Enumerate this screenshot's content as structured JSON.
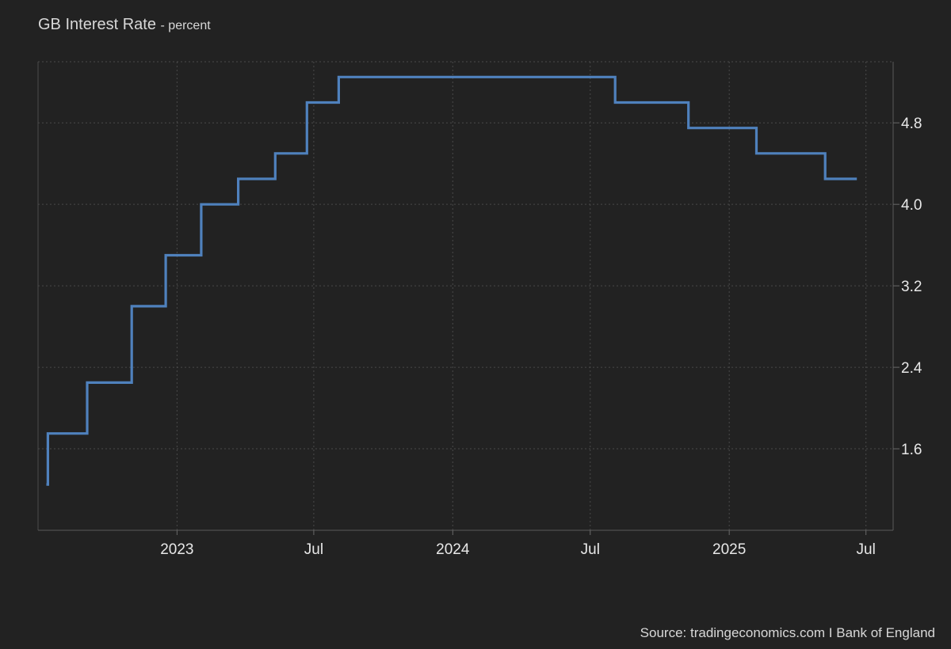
{
  "chart_data": {
    "type": "line",
    "title": "GB Interest Rate",
    "unit_label": "- percent",
    "source": "Source: tradingeconomics.com I Bank of England",
    "line_color": "#4f81bd",
    "background": "#222222",
    "grid": true,
    "step": true,
    "y_axis_side": "right",
    "ylim": [
      0.8,
      5.4
    ],
    "yticks": [
      {
        "value": 1.6,
        "label": "1.6"
      },
      {
        "value": 2.4,
        "label": "2.4"
      },
      {
        "value": 3.2,
        "label": "3.2"
      },
      {
        "value": 4.0,
        "label": "4.0"
      },
      {
        "value": 4.8,
        "label": "4.8"
      }
    ],
    "xlim": [
      "2022-07-01",
      "2025-08-06"
    ],
    "xticks": [
      {
        "date": "2023-01-01",
        "label": "2023"
      },
      {
        "date": "2023-07-01",
        "label": "Jul"
      },
      {
        "date": "2024-01-01",
        "label": "2024"
      },
      {
        "date": "2024-07-01",
        "label": "Jul"
      },
      {
        "date": "2025-01-01",
        "label": "2025"
      },
      {
        "date": "2025-07-01",
        "label": "Jul"
      }
    ],
    "series": [
      {
        "points": [
          {
            "date": "2022-07-12",
            "value": 1.25
          },
          {
            "date": "2022-07-14",
            "value": 1.75
          },
          {
            "date": "2022-09-04",
            "value": 2.25
          },
          {
            "date": "2022-11-02",
            "value": 3.0
          },
          {
            "date": "2022-12-17",
            "value": 3.5
          },
          {
            "date": "2023-02-02",
            "value": 4.0
          },
          {
            "date": "2023-03-23",
            "value": 4.25
          },
          {
            "date": "2023-05-11",
            "value": 4.5
          },
          {
            "date": "2023-06-22",
            "value": 5.0
          },
          {
            "date": "2023-08-03",
            "value": 5.25
          },
          {
            "date": "2024-08-03",
            "value": 5.0
          },
          {
            "date": "2024-11-08",
            "value": 4.75
          },
          {
            "date": "2025-02-06",
            "value": 4.5
          },
          {
            "date": "2025-05-08",
            "value": 4.25
          },
          {
            "date": "2025-06-19",
            "value": 4.25
          }
        ]
      }
    ]
  }
}
